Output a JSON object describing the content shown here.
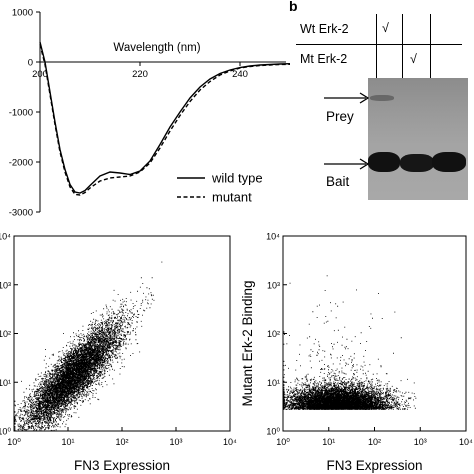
{
  "panel_b_label": "b",
  "table": {
    "row1_label": "Wt Erk-2",
    "row2_label": "Mt Erk-2",
    "check_mark": "√"
  },
  "gel": {
    "prey_label": "Prey",
    "bait_label": "Bait"
  },
  "colors": {
    "ink": "#000000",
    "gel_background": "#a0a0a0",
    "band": "#111111"
  },
  "chart_data": [
    {
      "type": "line",
      "title": "",
      "xlabel": "Wavelength (nm)",
      "ylabel": "",
      "xlim": [
        200,
        250
      ],
      "ylim": [
        -3000,
        1000
      ],
      "x_ticks": [
        200,
        220,
        240
      ],
      "x_tick_labels": [
        "200",
        "220",
        "240"
      ],
      "y_ticks": [
        -3000,
        -2000,
        -1000,
        0,
        1000
      ],
      "y_tick_labels": [
        "-3000",
        "-2000",
        "-1000",
        "0",
        "1000"
      ],
      "legend_position": "bottom-right",
      "series": [
        {
          "name": "wild type",
          "style": "solid",
          "x": [
            200,
            201,
            202,
            203,
            204,
            205,
            206,
            207,
            208,
            209,
            210,
            212,
            214,
            216,
            218,
            220,
            222,
            224,
            226,
            228,
            230,
            232,
            234,
            236,
            238,
            240,
            242,
            244,
            246,
            248,
            250
          ],
          "y": [
            400,
            0,
            -600,
            -1200,
            -1750,
            -2150,
            -2450,
            -2600,
            -2620,
            -2570,
            -2470,
            -2280,
            -2200,
            -2220,
            -2250,
            -2180,
            -1980,
            -1650,
            -1300,
            -1000,
            -720,
            -500,
            -340,
            -230,
            -160,
            -110,
            -80,
            -60,
            -50,
            -40,
            -35
          ]
        },
        {
          "name": "mutant",
          "style": "dashed",
          "x": [
            200,
            201,
            202,
            203,
            204,
            205,
            206,
            207,
            208,
            209,
            210,
            212,
            214,
            216,
            218,
            220,
            222,
            224,
            226,
            228,
            230,
            232,
            234,
            236,
            238,
            240,
            242,
            244,
            246,
            248,
            250
          ],
          "y": [
            350,
            -50,
            -650,
            -1250,
            -1800,
            -2200,
            -2500,
            -2650,
            -2660,
            -2610,
            -2520,
            -2380,
            -2320,
            -2300,
            -2280,
            -2200,
            -2020,
            -1720,
            -1380,
            -1070,
            -790,
            -560,
            -390,
            -260,
            -180,
            -120,
            -90,
            -70,
            -60,
            -50,
            -45
          ]
        }
      ]
    },
    {
      "type": "scatter",
      "title": "",
      "xlabel": "FN3 Expression",
      "ylabel": "",
      "x_scale": "log",
      "y_scale": "log",
      "xlim": [
        1,
        10000
      ],
      "ylim": [
        1,
        10000
      ],
      "x_tick_labels": [
        "10⁰",
        "10¹",
        "10²",
        "10³",
        "10⁴"
      ],
      "y_tick_labels": [
        "10⁰",
        "10¹",
        "10²",
        "10³",
        "10⁴"
      ],
      "distribution": {
        "description_points": "dense diagonal population",
        "x_center_log10": 1.1,
        "x_spread_log10": 0.45,
        "correlation_slope": 1.05,
        "y_spread_log10": 0.28,
        "approx_count": 9000
      }
    },
    {
      "type": "scatter",
      "title": "",
      "xlabel": "FN3 Expression",
      "ylabel": "Mutant Erk-2 Binding",
      "x_scale": "log",
      "y_scale": "log",
      "xlim": [
        1,
        10000
      ],
      "ylim": [
        1,
        10000
      ],
      "x_tick_labels": [
        "10⁰",
        "10¹",
        "10²",
        "10³",
        "10⁴"
      ],
      "y_tick_labels": [
        "10⁰",
        "10¹",
        "10²",
        "10³",
        "10⁴"
      ],
      "distribution": {
        "description_points": "horizontal low-binding population",
        "x_center_log10": 1.2,
        "x_spread_log10": 0.55,
        "y_center_log10": 0.55,
        "y_spread_log10": 0.22,
        "approx_count": 9000
      }
    }
  ]
}
